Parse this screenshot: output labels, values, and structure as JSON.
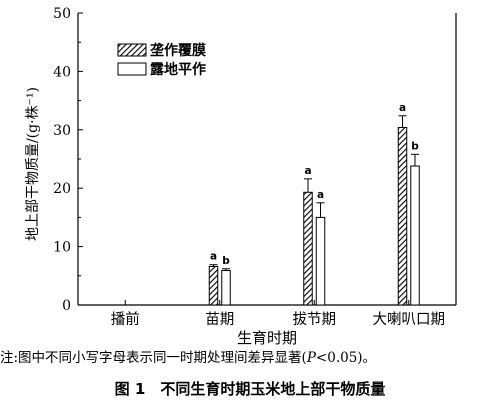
{
  "chart_data": {
    "type": "bar",
    "title": "",
    "xlabel": "生育时期",
    "ylabel": "地上部干物质量/(g·株⁻¹)",
    "ylim": [
      0,
      50
    ],
    "yticks": [
      "0",
      "10",
      "20",
      "30",
      "40",
      "50"
    ],
    "categories": [
      "播前",
      "苗期",
      "拔节期",
      "大喇叭口期"
    ],
    "series": [
      {
        "name": "垄作覆膜",
        "pattern": "hatched",
        "values": [
          null,
          6.6,
          19.3,
          30.4
        ],
        "errors": [
          null,
          0.3,
          2.3,
          2.0
        ],
        "labels": [
          "",
          "a",
          "a",
          "a"
        ]
      },
      {
        "name": "露地平作",
        "pattern": "white",
        "values": [
          null,
          5.9,
          15.0,
          23.8
        ],
        "errors": [
          null,
          0.3,
          2.5,
          2.0
        ],
        "labels": [
          "",
          "b",
          "a",
          "b"
        ]
      }
    ],
    "legend_position": "top-left",
    "grid": false
  },
  "note": {
    "prefix": "注:图中不同小写字母表示同一时期处理间差异显著(",
    "p": "P",
    "suffix": "<0.05)。"
  },
  "caption": "图 1　不同生育时期玉米地上部干物质量"
}
